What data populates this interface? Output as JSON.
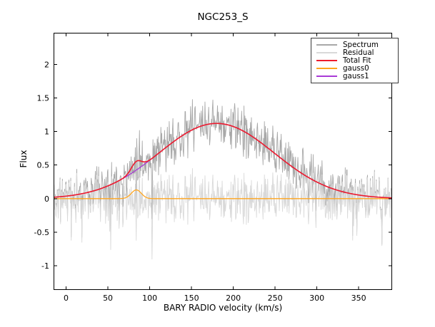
{
  "chart_data": {
    "type": "line",
    "title": "NGC253_S",
    "xlabel": "BARY RADIO velocity (km/s)",
    "ylabel": "Flux",
    "xlim": [
      -15,
      390
    ],
    "ylim": [
      -1.36,
      2.47
    ],
    "xticks": [
      0,
      50,
      100,
      150,
      200,
      250,
      300,
      350
    ],
    "xtick_labels": [
      "0",
      "50",
      "100",
      "150",
      "200",
      "250",
      "300",
      "350"
    ],
    "yticks": [
      -1,
      -0.5,
      0,
      0.5,
      1,
      1.5,
      2
    ],
    "ytick_labels": [
      "-1",
      "-0.5",
      "0",
      "0.5",
      "1",
      "1.5",
      "2"
    ],
    "grid": false,
    "legend_position": "upper right",
    "frame_color": "#000000",
    "series": [
      {
        "name": "Spectrum",
        "color": "#a8a8a8",
        "role": "spectrum",
        "width": 0.9,
        "description": "observed spectrum = total fit + noise, noise std ~0.17, excursions to +1.55 / -0.2 around fit"
      },
      {
        "name": "Residual",
        "color": "#d9d9d9",
        "role": "residual",
        "width": 0.9,
        "description": "spectrum minus total fit, scattered about 0, deepest dip -0.9 near v=103"
      },
      {
        "name": "Total Fit",
        "color": "#ed1c2e",
        "role": "total",
        "width": 1.6,
        "description": "sum of gauss0 and gauss1, peak 1.12 at v=180 with small bump near v=84"
      },
      {
        "name": "gauss0",
        "color": "#ffa51e",
        "role": "component",
        "width": 1.3,
        "amp": 0.13,
        "center": 84,
        "sigma": 6
      },
      {
        "name": "gauss1",
        "color": "#a93ad6",
        "role": "component",
        "width": 1.3,
        "amp": 1.12,
        "center": 180,
        "sigma": 69
      }
    ],
    "noise": {
      "seed": 11,
      "n": 730,
      "base_amp": 0.42,
      "spike_chance": 0.05,
      "spike_scale": 1.9,
      "forced_spikes": [
        {
          "x": 6,
          "y": -0.62
        },
        {
          "x": 19,
          "y": -0.65
        },
        {
          "x": 88,
          "y": 0.45
        },
        {
          "x": 103,
          "y": -0.9
        },
        {
          "x": 151,
          "y": 0.45
        },
        {
          "x": 348,
          "y": -0.55
        },
        {
          "x": 378,
          "y": -0.7
        }
      ]
    },
    "z_order": [
      "Spectrum",
      "Residual",
      "gauss1",
      "gauss0",
      "Total Fit"
    ]
  }
}
